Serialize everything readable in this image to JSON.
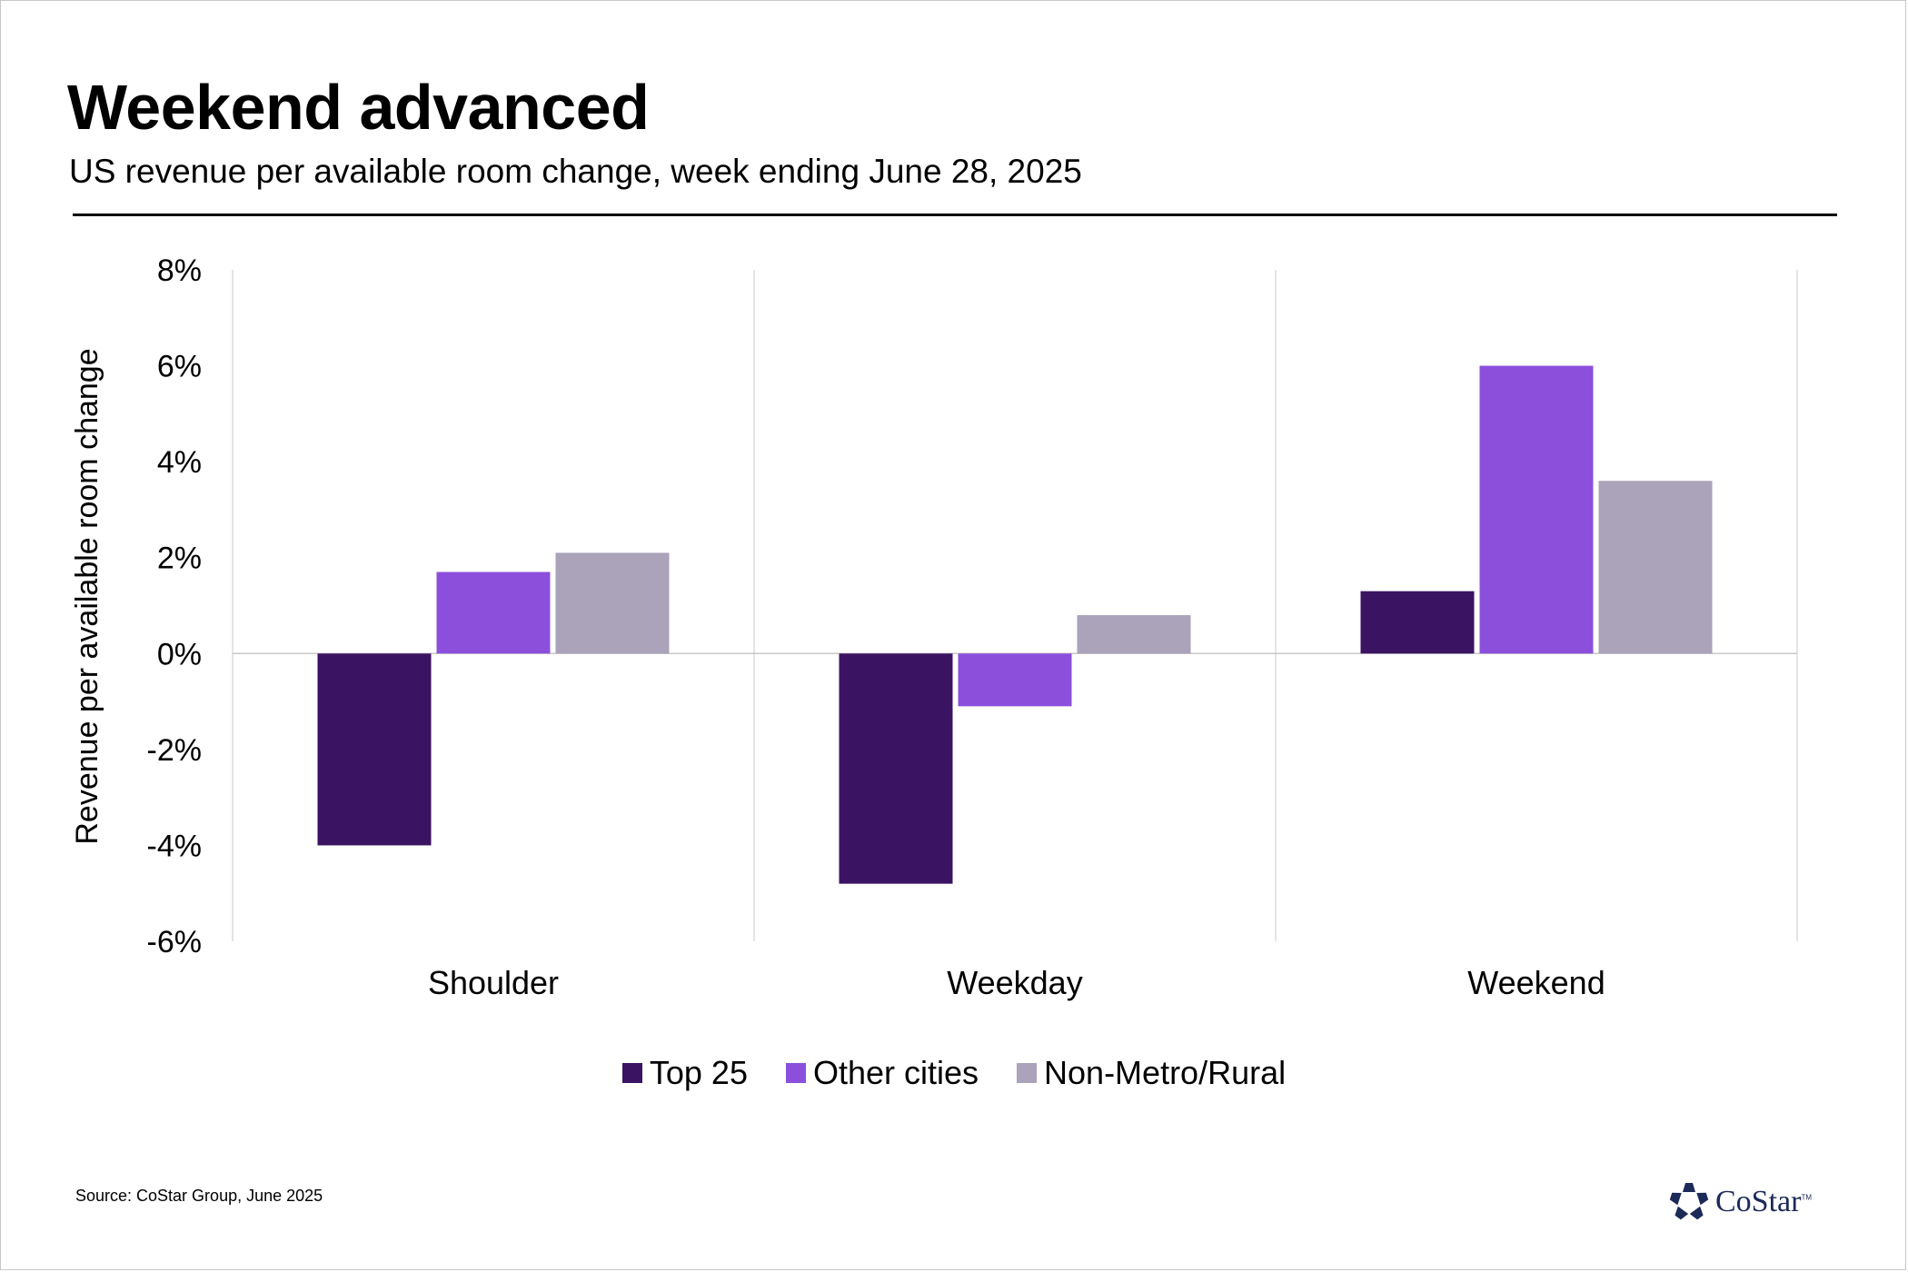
{
  "header": {
    "title": "Weekend advanced",
    "subtitle": "US revenue per available room change, week ending June 28, 2025"
  },
  "footer": {
    "source": "Source: CoStar Group, June 2025",
    "logo_text": "CoStar",
    "logo_tm": "TM"
  },
  "chart_data": {
    "type": "bar",
    "title": "Weekend advanced",
    "subtitle": "US revenue per available room change, week ending June 28, 2025",
    "xlabel": "",
    "ylabel": "Revenue per available room change",
    "categories": [
      "Shoulder",
      "Weekday",
      "Weekend"
    ],
    "series": [
      {
        "name": "Top 25",
        "color": "#3b1363",
        "values": [
          -4.0,
          -4.8,
          1.3
        ]
      },
      {
        "name": "Other cities",
        "color": "#8c4fdc",
        "values": [
          1.7,
          -1.1,
          6.0
        ]
      },
      {
        "name": "Non-Metro/Rural",
        "color": "#aaa3ba",
        "values": [
          2.1,
          0.8,
          3.6
        ]
      }
    ],
    "ylim": [
      -6,
      8
    ],
    "yticks": [
      8,
      6,
      4,
      2,
      0,
      -2,
      -4,
      -6
    ],
    "ytick_labels": [
      "8%",
      "6%",
      "4%",
      "2%",
      "0%",
      "-2%",
      "-4%",
      "-6%"
    ],
    "grid": "vertical category separators",
    "legend": "bottom-center"
  }
}
